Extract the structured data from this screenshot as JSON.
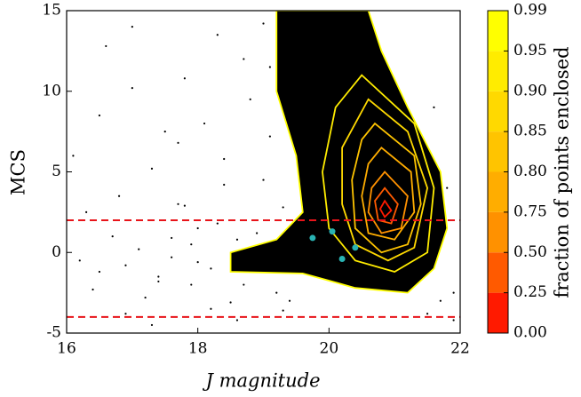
{
  "chart_data": {
    "type": "scatter",
    "xlabel": "J magnitude",
    "ylabel": "MCS",
    "xlim": [
      16,
      22
    ],
    "ylim": [
      -5,
      15
    ],
    "xticks": [
      16,
      18,
      20,
      22
    ],
    "yticks": [
      -5,
      0,
      5,
      10,
      15
    ],
    "points": {
      "color": "#000000",
      "x": [
        16.2,
        16.5,
        16.9,
        17.1,
        17.4,
        17.6,
        17.9,
        18.2,
        18.6,
        18.9,
        16.3,
        16.8,
        17.3,
        17.7,
        18.1,
        18.4,
        18.8,
        19.1,
        16.6,
        17.0,
        17.5,
        17.8,
        18.3,
        18.7,
        19.0,
        16.4,
        17.2,
        17.9,
        18.5,
        19.2,
        16.7,
        17.6,
        18.0,
        18.9,
        19.3,
        16.9,
        17.3,
        18.2,
        18.6,
        19.4,
        16.1,
        17.0,
        17.8,
        18.4,
        19.1,
        21.7,
        21.9,
        21.5,
        21.8,
        21.6,
        17.4,
        18.0,
        18.7,
        19.0,
        16.5,
        17.7,
        18.3,
        18.9,
        19.3,
        21.9
      ],
      "y": [
        -0.5,
        -1.2,
        -0.8,
        0.2,
        -1.5,
        -0.3,
        0.5,
        -1.0,
        0.8,
        -0.2,
        2.5,
        3.5,
        5.2,
        6.8,
        8.0,
        4.2,
        9.5,
        11.5,
        12.8,
        10.2,
        7.5,
        2.9,
        13.5,
        12.0,
        14.2,
        -2.3,
        -2.8,
        -2.0,
        -3.1,
        -2.5,
        1.0,
        0.9,
        1.5,
        1.2,
        2.8,
        -3.8,
        -4.5,
        -3.5,
        -4.2,
        -3.0,
        6.0,
        14.0,
        10.8,
        5.8,
        7.2,
        -3.0,
        -2.5,
        -3.8,
        4.0,
        9.0,
        -1.8,
        -0.6,
        -2.0,
        4.5,
        8.5,
        3.0,
        1.8,
        0.3,
        -3.6,
        -4.2
      ]
    },
    "highlight": {
      "color": "#29b3b3",
      "x": [
        19.75,
        20.05,
        20.2,
        20.4
      ],
      "y": [
        0.9,
        1.3,
        -0.4,
        0.3
      ]
    },
    "hlines": {
      "color": "#e8141a",
      "values": [
        2,
        -4
      ]
    },
    "contours": [
      {
        "level": 0.99,
        "x": [
          19.2,
          20.6,
          20.8,
          21.2,
          21.7,
          21.8,
          21.6,
          21.2,
          20.4,
          19.6,
          18.5,
          18.5,
          19.2,
          19.6,
          19.5,
          19.2,
          19.2
        ],
        "y": [
          15,
          15,
          12.5,
          9,
          5,
          1.5,
          -1,
          -2.5,
          -2.2,
          -1.3,
          -1.2,
          0,
          0.8,
          2.5,
          6,
          10,
          15
        ]
      },
      {
        "level": 0.95,
        "x": [
          20.5,
          21.3,
          21.6,
          21.5,
          21.0,
          20.4,
          20.0,
          19.9,
          20.1,
          20.5
        ],
        "y": [
          11,
          8,
          4,
          0,
          -1.2,
          -0.5,
          1.5,
          5,
          9,
          11
        ]
      },
      {
        "level": 0.9,
        "x": [
          20.6,
          21.2,
          21.5,
          21.3,
          20.9,
          20.4,
          20.2,
          20.2,
          20.6
        ],
        "y": [
          9.5,
          7.5,
          4,
          0.3,
          -0.5,
          0.5,
          3,
          6.5,
          9.5
        ]
      },
      {
        "level": 0.85,
        "x": [
          20.7,
          21.3,
          21.4,
          21.2,
          20.8,
          20.4,
          20.35,
          20.5,
          20.7
        ],
        "y": [
          8,
          6,
          3,
          0.5,
          0,
          1.5,
          4.5,
          7,
          8
        ]
      },
      {
        "level": 0.8,
        "x": [
          20.8,
          21.25,
          21.3,
          21.0,
          20.6,
          20.5,
          20.6,
          20.8
        ],
        "y": [
          6.5,
          5,
          2.5,
          0.8,
          1.2,
          3.5,
          5.5,
          6.5
        ]
      },
      {
        "level": 0.75,
        "x": [
          20.85,
          21.2,
          21.1,
          20.8,
          20.6,
          20.65,
          20.85
        ],
        "y": [
          5,
          3.5,
          1.5,
          1.2,
          2.5,
          4,
          5
        ]
      },
      {
        "level": 0.5,
        "x": [
          20.85,
          21.05,
          20.95,
          20.75,
          20.7,
          20.85
        ],
        "y": [
          4,
          3,
          1.8,
          2,
          3.2,
          4
        ]
      },
      {
        "level": 0.25,
        "x": [
          20.85,
          20.95,
          20.85,
          20.78,
          20.85
        ],
        "y": [
          3.2,
          2.6,
          2.2,
          2.7,
          3.2
        ]
      }
    ],
    "colorbar": {
      "label": "fraction of points enclosed",
      "colors": [
        "#ff1a00",
        "#ff5a00",
        "#ff9100",
        "#ffad00",
        "#ffc400",
        "#ffd900",
        "#ffec00",
        "#ffff00"
      ],
      "ticks": [
        {
          "value": 0,
          "label": "0.00"
        },
        {
          "value": 0.25,
          "label": "0.25"
        },
        {
          "value": 0.5,
          "label": "0.50"
        },
        {
          "value": 0.75,
          "label": "0.75"
        },
        {
          "value": 0.8,
          "label": "0.80"
        },
        {
          "value": 0.85,
          "label": "0.85"
        },
        {
          "value": 0.9,
          "label": "0.90"
        },
        {
          "value": 0.95,
          "label": "0.95"
        },
        {
          "value": 0.99,
          "label": "0.99"
        }
      ]
    }
  }
}
